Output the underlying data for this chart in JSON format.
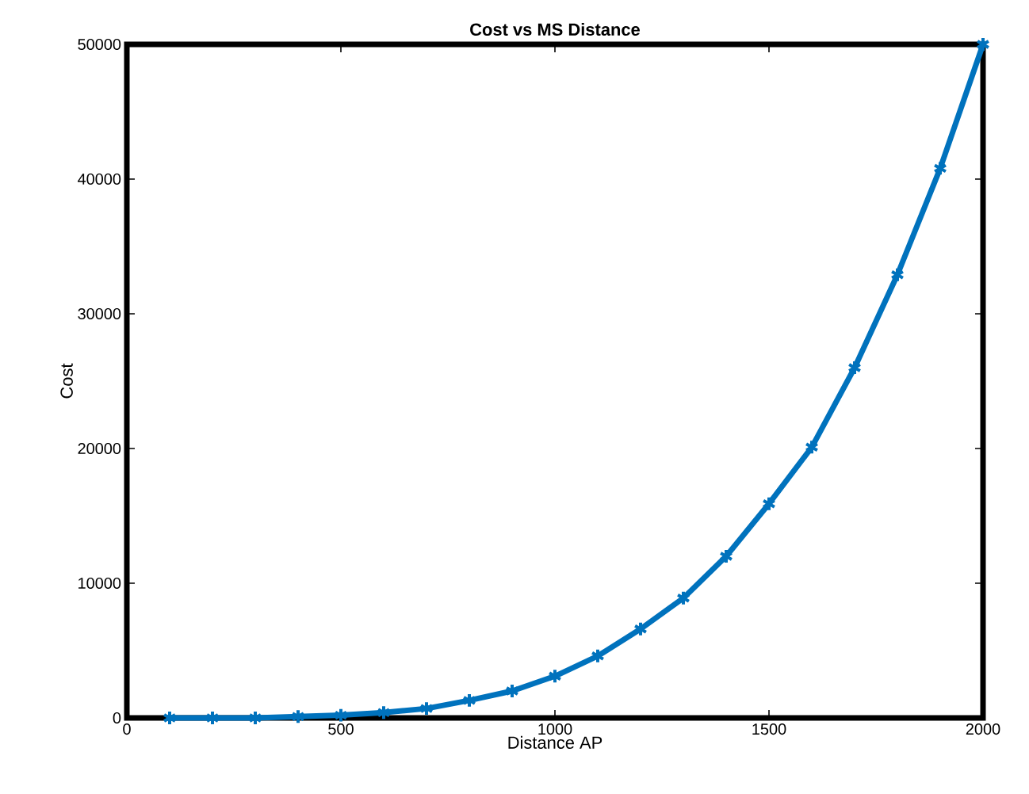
{
  "chart_data": {
    "type": "line",
    "title": "Cost vs MS Distance",
    "xlabel": "Distance AP",
    "ylabel": "Cost",
    "x": [
      100,
      200,
      300,
      400,
      500,
      600,
      700,
      800,
      900,
      1000,
      1100,
      1200,
      1300,
      1400,
      1500,
      1600,
      1700,
      1800,
      1900,
      2000
    ],
    "series": [
      {
        "color": "#0072bd",
        "values": [
          0,
          0,
          0,
          100,
          200,
          400,
          700,
          1300,
          2000,
          3100,
          4600,
          6600,
          8900,
          12000,
          15900,
          20100,
          26000,
          32900,
          40800,
          50000
        ]
      }
    ],
    "xlim": [
      0,
      2000
    ],
    "ylim": [
      0,
      50000
    ],
    "xticks": [
      0,
      500,
      1000,
      1500,
      2000
    ],
    "yticks": [
      0,
      10000,
      20000,
      30000,
      40000,
      50000
    ],
    "marker": "cross",
    "line_style": "solid"
  }
}
